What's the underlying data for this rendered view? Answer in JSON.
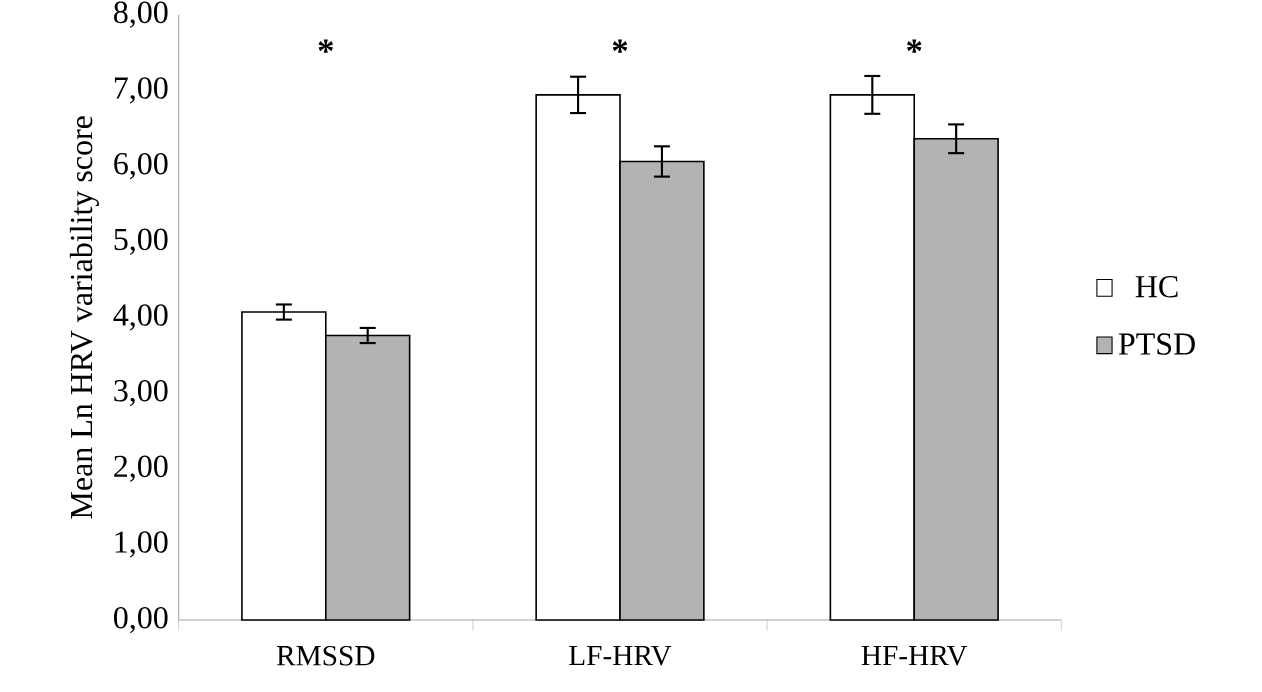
{
  "chart_data": {
    "type": "bar",
    "ylabel": "Mean Ln HRV variability score",
    "categories": [
      "RMSSD",
      "LF-HRV",
      "HF-HRV"
    ],
    "series": [
      {
        "name": "HC",
        "color": "#ffffff",
        "values": [
          4.07,
          6.94,
          6.94
        ],
        "errors": [
          0.1,
          0.24,
          0.25
        ]
      },
      {
        "name": "PTSD",
        "color": "#b3b3b3",
        "values": [
          3.76,
          6.06,
          6.36
        ],
        "errors": [
          0.1,
          0.2,
          0.19
        ]
      }
    ],
    "ylim": [
      0,
      8
    ],
    "yticks": [
      {
        "value": 0,
        "label": "0,00"
      },
      {
        "value": 1,
        "label": "1,00"
      },
      {
        "value": 2,
        "label": "2,00"
      },
      {
        "value": 3,
        "label": "3,00"
      },
      {
        "value": 4,
        "label": "4,00"
      },
      {
        "value": 5,
        "label": "5,00"
      },
      {
        "value": 6,
        "label": "6,00"
      },
      {
        "value": 7,
        "label": "7,00"
      },
      {
        "value": 8,
        "label": "8,00"
      }
    ],
    "annotations": [
      "*",
      "*",
      "*"
    ],
    "legend": "right",
    "grid": false
  }
}
